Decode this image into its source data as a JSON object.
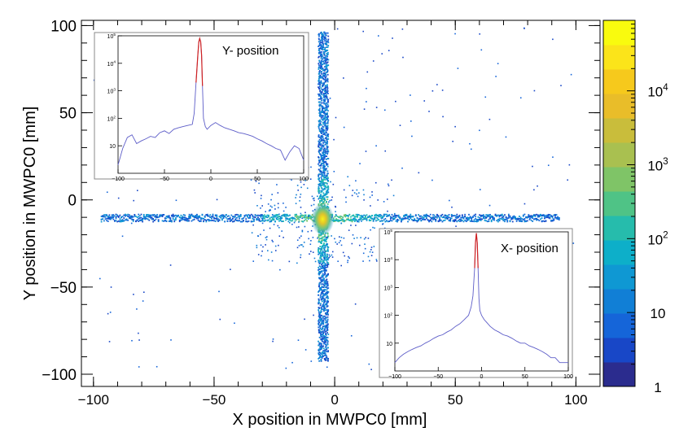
{
  "chart_data": [
    {
      "type": "heatmap",
      "title": "",
      "xlabel": "X position in MWPC0 [mm]",
      "ylabel": "Y position in MWPC0 [mm]",
      "xlim": [
        -105,
        110
      ],
      "ylim": [
        -107,
        103
      ],
      "x_ticks": [
        -100,
        -50,
        0,
        50,
        100
      ],
      "y_ticks": [
        -100,
        -50,
        0,
        50,
        100
      ],
      "x_tick_labels": [
        "−100",
        "−50",
        "0",
        "50",
        "100"
      ],
      "y_tick_labels": [
        "−100",
        "−50",
        "0",
        "50",
        "100"
      ],
      "color_scale": "log",
      "z_range": [
        1,
        90000
      ],
      "z_ticks": [
        1,
        10,
        100,
        1000,
        10000
      ],
      "z_tick_labels": [
        "1",
        "10",
        "10^2",
        "10^3",
        "10^4"
      ],
      "peak": {
        "x": -5,
        "y": -11
      },
      "horizontal_band": {
        "y": -10,
        "x_from": -97,
        "x_to": 93
      },
      "vertical_band": {
        "x": -5,
        "y_from": -92,
        "y_to": 97
      },
      "colormap": [
        "#2b2c8e",
        "#1847c7",
        "#1565d9",
        "#117fd6",
        "#0f98d3",
        "#0dafc9",
        "#26bcac",
        "#4fc386",
        "#7fc467",
        "#a9c050",
        "#c9bd3b",
        "#e9bd29",
        "#f6c91c",
        "#fbe41a",
        "#f9fb0e"
      ]
    },
    {
      "type": "line",
      "title": "Y- position",
      "xlim": [
        -100,
        100
      ],
      "ylog": true,
      "ylim": [
        1,
        100000
      ],
      "x_ticks": [
        -100,
        -50,
        0,
        50,
        100
      ],
      "x_tick_labels": [
        "−100",
        "−50",
        "0",
        "50",
        "100"
      ],
      "y_ticks": [
        10,
        100,
        1000,
        10000,
        100000
      ],
      "y_tick_labels": [
        "10",
        "10^2",
        "10^3",
        "10^4",
        "10^5"
      ],
      "x": [
        -100,
        -95,
        -90,
        -85,
        -80,
        -75,
        -70,
        -65,
        -60,
        -55,
        -50,
        -45,
        -40,
        -35,
        -30,
        -25,
        -20,
        -18,
        -16,
        -14,
        -13,
        -12,
        -11,
        -10,
        -9,
        -8,
        -6,
        -4,
        0,
        5,
        10,
        15,
        20,
        25,
        30,
        35,
        40,
        45,
        50,
        55,
        60,
        65,
        70,
        75,
        80,
        85,
        90,
        95,
        100
      ],
      "values": [
        2,
        8,
        20,
        25,
        12,
        15,
        18,
        22,
        20,
        30,
        35,
        28,
        40,
        45,
        50,
        55,
        60,
        150,
        2000,
        20000,
        60000,
        80000,
        60000,
        20000,
        1500,
        100,
        50,
        40,
        55,
        70,
        55,
        45,
        40,
        35,
        30,
        28,
        25,
        22,
        18,
        15,
        12,
        10,
        8,
        7,
        3,
        6,
        10,
        8,
        3
      ],
      "series_colors": [
        "#5d5dc8",
        "#d02020"
      ]
    },
    {
      "type": "line",
      "title": "X- position",
      "xlim": [
        -100,
        100
      ],
      "ylog": true,
      "ylim": [
        1,
        100000
      ],
      "x_ticks": [
        -100,
        -50,
        0,
        50,
        100
      ],
      "x_tick_labels": [
        "−100",
        "−50",
        "0",
        "50",
        "100"
      ],
      "y_ticks": [
        10,
        100,
        1000,
        10000,
        100000
      ],
      "y_tick_labels": [
        "10",
        "10^2",
        "10^3",
        "10^4",
        "10^5"
      ],
      "x": [
        -100,
        -95,
        -90,
        -85,
        -80,
        -75,
        -70,
        -65,
        -60,
        -55,
        -50,
        -45,
        -40,
        -35,
        -30,
        -25,
        -20,
        -15,
        -12,
        -10,
        -8,
        -7,
        -6,
        -5,
        -4,
        -3,
        -2,
        0,
        3,
        5,
        10,
        15,
        20,
        25,
        30,
        35,
        40,
        45,
        50,
        55,
        60,
        65,
        70,
        75,
        80,
        85,
        90,
        95,
        100
      ],
      "values": [
        2,
        3,
        4,
        5,
        6,
        7,
        8,
        10,
        12,
        15,
        18,
        20,
        25,
        30,
        40,
        50,
        70,
        100,
        200,
        500,
        5000,
        40000,
        90000,
        40000,
        5000,
        400,
        150,
        100,
        70,
        60,
        40,
        30,
        25,
        20,
        18,
        15,
        12,
        10,
        10,
        8,
        7,
        6,
        5,
        4,
        3,
        3,
        2,
        2,
        2
      ],
      "series_colors": [
        "#5d5dc8",
        "#d02020"
      ]
    }
  ]
}
